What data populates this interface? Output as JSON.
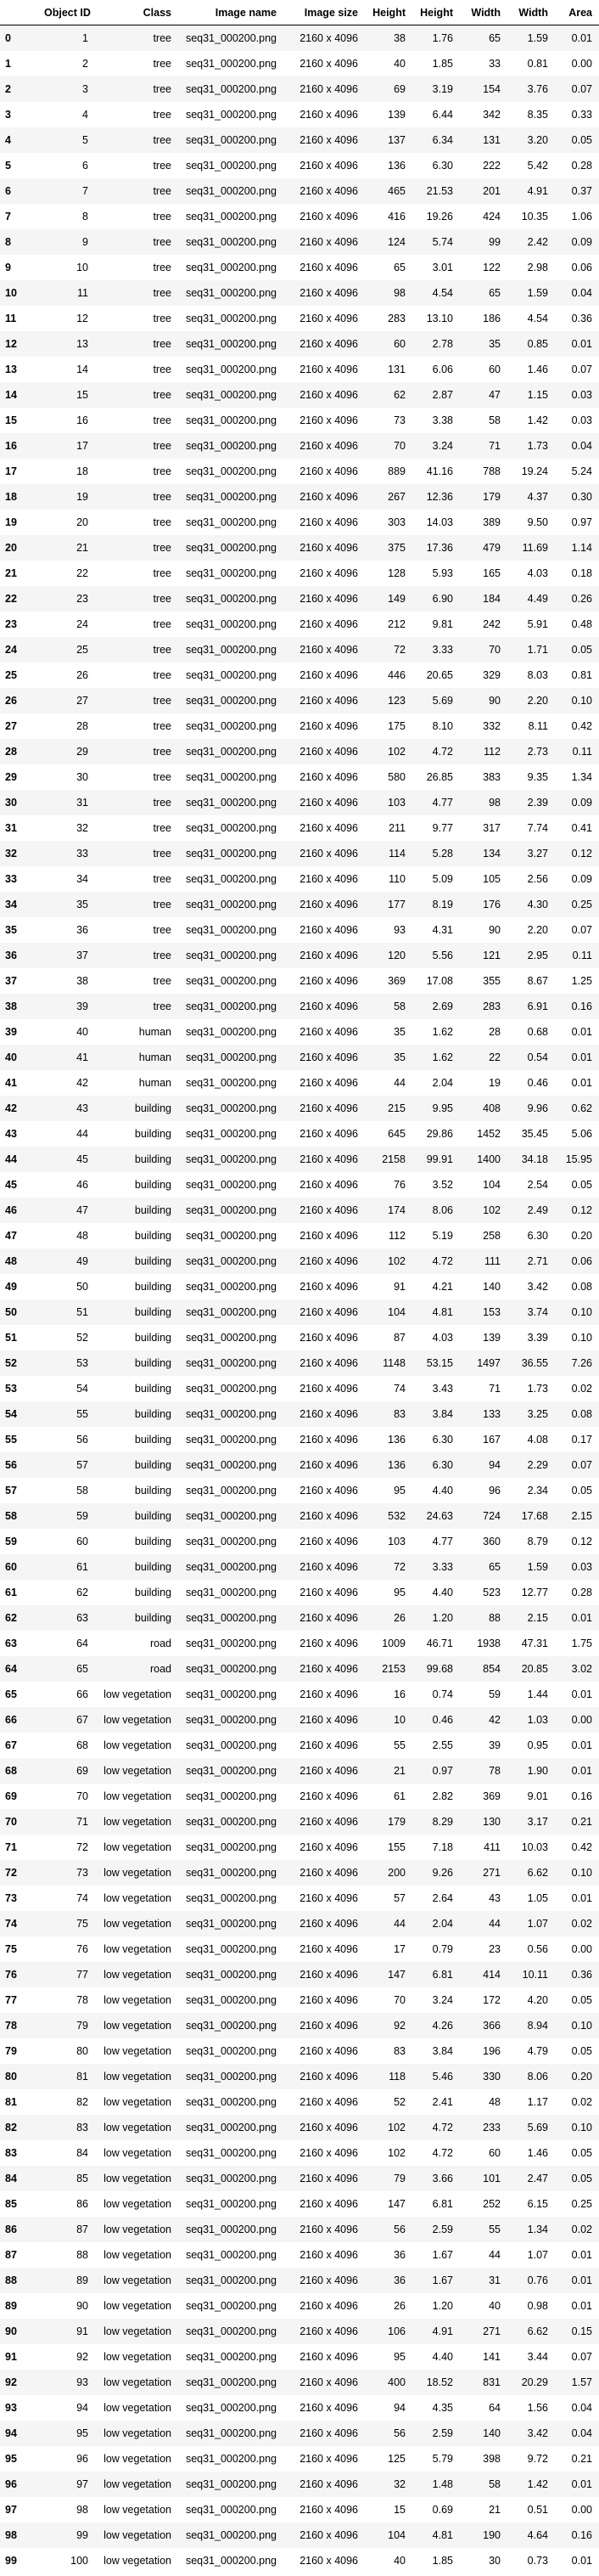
{
  "table": {
    "columns": [
      "",
      "Object ID",
      "Class",
      "Image name",
      "Image size",
      "Height",
      "Height",
      "Width",
      "Width",
      "Area"
    ],
    "rows": [
      [
        "0",
        "1",
        "tree",
        "seq31_000200.png",
        "2160 x 4096",
        "38",
        "1.76",
        "65",
        "1.59",
        "0.01"
      ],
      [
        "1",
        "2",
        "tree",
        "seq31_000200.png",
        "2160 x 4096",
        "40",
        "1.85",
        "33",
        "0.81",
        "0.00"
      ],
      [
        "2",
        "3",
        "tree",
        "seq31_000200.png",
        "2160 x 4096",
        "69",
        "3.19",
        "154",
        "3.76",
        "0.07"
      ],
      [
        "3",
        "4",
        "tree",
        "seq31_000200.png",
        "2160 x 4096",
        "139",
        "6.44",
        "342",
        "8.35",
        "0.33"
      ],
      [
        "4",
        "5",
        "tree",
        "seq31_000200.png",
        "2160 x 4096",
        "137",
        "6.34",
        "131",
        "3.20",
        "0.05"
      ],
      [
        "5",
        "6",
        "tree",
        "seq31_000200.png",
        "2160 x 4096",
        "136",
        "6.30",
        "222",
        "5.42",
        "0.28"
      ],
      [
        "6",
        "7",
        "tree",
        "seq31_000200.png",
        "2160 x 4096",
        "465",
        "21.53",
        "201",
        "4.91",
        "0.37"
      ],
      [
        "7",
        "8",
        "tree",
        "seq31_000200.png",
        "2160 x 4096",
        "416",
        "19.26",
        "424",
        "10.35",
        "1.06"
      ],
      [
        "8",
        "9",
        "tree",
        "seq31_000200.png",
        "2160 x 4096",
        "124",
        "5.74",
        "99",
        "2.42",
        "0.09"
      ],
      [
        "9",
        "10",
        "tree",
        "seq31_000200.png",
        "2160 x 4096",
        "65",
        "3.01",
        "122",
        "2.98",
        "0.06"
      ],
      [
        "10",
        "11",
        "tree",
        "seq31_000200.png",
        "2160 x 4096",
        "98",
        "4.54",
        "65",
        "1.59",
        "0.04"
      ],
      [
        "11",
        "12",
        "tree",
        "seq31_000200.png",
        "2160 x 4096",
        "283",
        "13.10",
        "186",
        "4.54",
        "0.36"
      ],
      [
        "12",
        "13",
        "tree",
        "seq31_000200.png",
        "2160 x 4096",
        "60",
        "2.78",
        "35",
        "0.85",
        "0.01"
      ],
      [
        "13",
        "14",
        "tree",
        "seq31_000200.png",
        "2160 x 4096",
        "131",
        "6.06",
        "60",
        "1.46",
        "0.07"
      ],
      [
        "14",
        "15",
        "tree",
        "seq31_000200.png",
        "2160 x 4096",
        "62",
        "2.87",
        "47",
        "1.15",
        "0.03"
      ],
      [
        "15",
        "16",
        "tree",
        "seq31_000200.png",
        "2160 x 4096",
        "73",
        "3.38",
        "58",
        "1.42",
        "0.03"
      ],
      [
        "16",
        "17",
        "tree",
        "seq31_000200.png",
        "2160 x 4096",
        "70",
        "3.24",
        "71",
        "1.73",
        "0.04"
      ],
      [
        "17",
        "18",
        "tree",
        "seq31_000200.png",
        "2160 x 4096",
        "889",
        "41.16",
        "788",
        "19.24",
        "5.24"
      ],
      [
        "18",
        "19",
        "tree",
        "seq31_000200.png",
        "2160 x 4096",
        "267",
        "12.36",
        "179",
        "4.37",
        "0.30"
      ],
      [
        "19",
        "20",
        "tree",
        "seq31_000200.png",
        "2160 x 4096",
        "303",
        "14.03",
        "389",
        "9.50",
        "0.97"
      ],
      [
        "20",
        "21",
        "tree",
        "seq31_000200.png",
        "2160 x 4096",
        "375",
        "17.36",
        "479",
        "11.69",
        "1.14"
      ],
      [
        "21",
        "22",
        "tree",
        "seq31_000200.png",
        "2160 x 4096",
        "128",
        "5.93",
        "165",
        "4.03",
        "0.18"
      ],
      [
        "22",
        "23",
        "tree",
        "seq31_000200.png",
        "2160 x 4096",
        "149",
        "6.90",
        "184",
        "4.49",
        "0.26"
      ],
      [
        "23",
        "24",
        "tree",
        "seq31_000200.png",
        "2160 x 4096",
        "212",
        "9.81",
        "242",
        "5.91",
        "0.48"
      ],
      [
        "24",
        "25",
        "tree",
        "seq31_000200.png",
        "2160 x 4096",
        "72",
        "3.33",
        "70",
        "1.71",
        "0.05"
      ],
      [
        "25",
        "26",
        "tree",
        "seq31_000200.png",
        "2160 x 4096",
        "446",
        "20.65",
        "329",
        "8.03",
        "0.81"
      ],
      [
        "26",
        "27",
        "tree",
        "seq31_000200.png",
        "2160 x 4096",
        "123",
        "5.69",
        "90",
        "2.20",
        "0.10"
      ],
      [
        "27",
        "28",
        "tree",
        "seq31_000200.png",
        "2160 x 4096",
        "175",
        "8.10",
        "332",
        "8.11",
        "0.42"
      ],
      [
        "28",
        "29",
        "tree",
        "seq31_000200.png",
        "2160 x 4096",
        "102",
        "4.72",
        "112",
        "2.73",
        "0.11"
      ],
      [
        "29",
        "30",
        "tree",
        "seq31_000200.png",
        "2160 x 4096",
        "580",
        "26.85",
        "383",
        "9.35",
        "1.34"
      ],
      [
        "30",
        "31",
        "tree",
        "seq31_000200.png",
        "2160 x 4096",
        "103",
        "4.77",
        "98",
        "2.39",
        "0.09"
      ],
      [
        "31",
        "32",
        "tree",
        "seq31_000200.png",
        "2160 x 4096",
        "211",
        "9.77",
        "317",
        "7.74",
        "0.41"
      ],
      [
        "32",
        "33",
        "tree",
        "seq31_000200.png",
        "2160 x 4096",
        "114",
        "5.28",
        "134",
        "3.27",
        "0.12"
      ],
      [
        "33",
        "34",
        "tree",
        "seq31_000200.png",
        "2160 x 4096",
        "110",
        "5.09",
        "105",
        "2.56",
        "0.09"
      ],
      [
        "34",
        "35",
        "tree",
        "seq31_000200.png",
        "2160 x 4096",
        "177",
        "8.19",
        "176",
        "4.30",
        "0.25"
      ],
      [
        "35",
        "36",
        "tree",
        "seq31_000200.png",
        "2160 x 4096",
        "93",
        "4.31",
        "90",
        "2.20",
        "0.07"
      ],
      [
        "36",
        "37",
        "tree",
        "seq31_000200.png",
        "2160 x 4096",
        "120",
        "5.56",
        "121",
        "2.95",
        "0.11"
      ],
      [
        "37",
        "38",
        "tree",
        "seq31_000200.png",
        "2160 x 4096",
        "369",
        "17.08",
        "355",
        "8.67",
        "1.25"
      ],
      [
        "38",
        "39",
        "tree",
        "seq31_000200.png",
        "2160 x 4096",
        "58",
        "2.69",
        "283",
        "6.91",
        "0.16"
      ],
      [
        "39",
        "40",
        "human",
        "seq31_000200.png",
        "2160 x 4096",
        "35",
        "1.62",
        "28",
        "0.68",
        "0.01"
      ],
      [
        "40",
        "41",
        "human",
        "seq31_000200.png",
        "2160 x 4096",
        "35",
        "1.62",
        "22",
        "0.54",
        "0.01"
      ],
      [
        "41",
        "42",
        "human",
        "seq31_000200.png",
        "2160 x 4096",
        "44",
        "2.04",
        "19",
        "0.46",
        "0.01"
      ],
      [
        "42",
        "43",
        "building",
        "seq31_000200.png",
        "2160 x 4096",
        "215",
        "9.95",
        "408",
        "9.96",
        "0.62"
      ],
      [
        "43",
        "44",
        "building",
        "seq31_000200.png",
        "2160 x 4096",
        "645",
        "29.86",
        "1452",
        "35.45",
        "5.06"
      ],
      [
        "44",
        "45",
        "building",
        "seq31_000200.png",
        "2160 x 4096",
        "2158",
        "99.91",
        "1400",
        "34.18",
        "15.95"
      ],
      [
        "45",
        "46",
        "building",
        "seq31_000200.png",
        "2160 x 4096",
        "76",
        "3.52",
        "104",
        "2.54",
        "0.05"
      ],
      [
        "46",
        "47",
        "building",
        "seq31_000200.png",
        "2160 x 4096",
        "174",
        "8.06",
        "102",
        "2.49",
        "0.12"
      ],
      [
        "47",
        "48",
        "building",
        "seq31_000200.png",
        "2160 x 4096",
        "112",
        "5.19",
        "258",
        "6.30",
        "0.20"
      ],
      [
        "48",
        "49",
        "building",
        "seq31_000200.png",
        "2160 x 4096",
        "102",
        "4.72",
        "111",
        "2.71",
        "0.06"
      ],
      [
        "49",
        "50",
        "building",
        "seq31_000200.png",
        "2160 x 4096",
        "91",
        "4.21",
        "140",
        "3.42",
        "0.08"
      ],
      [
        "50",
        "51",
        "building",
        "seq31_000200.png",
        "2160 x 4096",
        "104",
        "4.81",
        "153",
        "3.74",
        "0.10"
      ],
      [
        "51",
        "52",
        "building",
        "seq31_000200.png",
        "2160 x 4096",
        "87",
        "4.03",
        "139",
        "3.39",
        "0.10"
      ],
      [
        "52",
        "53",
        "building",
        "seq31_000200.png",
        "2160 x 4096",
        "1148",
        "53.15",
        "1497",
        "36.55",
        "7.26"
      ],
      [
        "53",
        "54",
        "building",
        "seq31_000200.png",
        "2160 x 4096",
        "74",
        "3.43",
        "71",
        "1.73",
        "0.02"
      ],
      [
        "54",
        "55",
        "building",
        "seq31_000200.png",
        "2160 x 4096",
        "83",
        "3.84",
        "133",
        "3.25",
        "0.08"
      ],
      [
        "55",
        "56",
        "building",
        "seq31_000200.png",
        "2160 x 4096",
        "136",
        "6.30",
        "167",
        "4.08",
        "0.17"
      ],
      [
        "56",
        "57",
        "building",
        "seq31_000200.png",
        "2160 x 4096",
        "136",
        "6.30",
        "94",
        "2.29",
        "0.07"
      ],
      [
        "57",
        "58",
        "building",
        "seq31_000200.png",
        "2160 x 4096",
        "95",
        "4.40",
        "96",
        "2.34",
        "0.05"
      ],
      [
        "58",
        "59",
        "building",
        "seq31_000200.png",
        "2160 x 4096",
        "532",
        "24.63",
        "724",
        "17.68",
        "2.15"
      ],
      [
        "59",
        "60",
        "building",
        "seq31_000200.png",
        "2160 x 4096",
        "103",
        "4.77",
        "360",
        "8.79",
        "0.12"
      ],
      [
        "60",
        "61",
        "building",
        "seq31_000200.png",
        "2160 x 4096",
        "72",
        "3.33",
        "65",
        "1.59",
        "0.03"
      ],
      [
        "61",
        "62",
        "building",
        "seq31_000200.png",
        "2160 x 4096",
        "95",
        "4.40",
        "523",
        "12.77",
        "0.28"
      ],
      [
        "62",
        "63",
        "building",
        "seq31_000200.png",
        "2160 x 4096",
        "26",
        "1.20",
        "88",
        "2.15",
        "0.01"
      ],
      [
        "63",
        "64",
        "road",
        "seq31_000200.png",
        "2160 x 4096",
        "1009",
        "46.71",
        "1938",
        "47.31",
        "1.75"
      ],
      [
        "64",
        "65",
        "road",
        "seq31_000200.png",
        "2160 x 4096",
        "2153",
        "99.68",
        "854",
        "20.85",
        "3.02"
      ],
      [
        "65",
        "66",
        "low vegetation",
        "seq31_000200.png",
        "2160 x 4096",
        "16",
        "0.74",
        "59",
        "1.44",
        "0.01"
      ],
      [
        "66",
        "67",
        "low vegetation",
        "seq31_000200.png",
        "2160 x 4096",
        "10",
        "0.46",
        "42",
        "1.03",
        "0.00"
      ],
      [
        "67",
        "68",
        "low vegetation",
        "seq31_000200.png",
        "2160 x 4096",
        "55",
        "2.55",
        "39",
        "0.95",
        "0.01"
      ],
      [
        "68",
        "69",
        "low vegetation",
        "seq31_000200.png",
        "2160 x 4096",
        "21",
        "0.97",
        "78",
        "1.90",
        "0.01"
      ],
      [
        "69",
        "70",
        "low vegetation",
        "seq31_000200.png",
        "2160 x 4096",
        "61",
        "2.82",
        "369",
        "9.01",
        "0.16"
      ],
      [
        "70",
        "71",
        "low vegetation",
        "seq31_000200.png",
        "2160 x 4096",
        "179",
        "8.29",
        "130",
        "3.17",
        "0.21"
      ],
      [
        "71",
        "72",
        "low vegetation",
        "seq31_000200.png",
        "2160 x 4096",
        "155",
        "7.18",
        "411",
        "10.03",
        "0.42"
      ],
      [
        "72",
        "73",
        "low vegetation",
        "seq31_000200.png",
        "2160 x 4096",
        "200",
        "9.26",
        "271",
        "6.62",
        "0.10"
      ],
      [
        "73",
        "74",
        "low vegetation",
        "seq31_000200.png",
        "2160 x 4096",
        "57",
        "2.64",
        "43",
        "1.05",
        "0.01"
      ],
      [
        "74",
        "75",
        "low vegetation",
        "seq31_000200.png",
        "2160 x 4096",
        "44",
        "2.04",
        "44",
        "1.07",
        "0.02"
      ],
      [
        "75",
        "76",
        "low vegetation",
        "seq31_000200.png",
        "2160 x 4096",
        "17",
        "0.79",
        "23",
        "0.56",
        "0.00"
      ],
      [
        "76",
        "77",
        "low vegetation",
        "seq31_000200.png",
        "2160 x 4096",
        "147",
        "6.81",
        "414",
        "10.11",
        "0.36"
      ],
      [
        "77",
        "78",
        "low vegetation",
        "seq31_000200.png",
        "2160 x 4096",
        "70",
        "3.24",
        "172",
        "4.20",
        "0.05"
      ],
      [
        "78",
        "79",
        "low vegetation",
        "seq31_000200.png",
        "2160 x 4096",
        "92",
        "4.26",
        "366",
        "8.94",
        "0.10"
      ],
      [
        "79",
        "80",
        "low vegetation",
        "seq31_000200.png",
        "2160 x 4096",
        "83",
        "3.84",
        "196",
        "4.79",
        "0.05"
      ],
      [
        "80",
        "81",
        "low vegetation",
        "seq31_000200.png",
        "2160 x 4096",
        "118",
        "5.46",
        "330",
        "8.06",
        "0.20"
      ],
      [
        "81",
        "82",
        "low vegetation",
        "seq31_000200.png",
        "2160 x 4096",
        "52",
        "2.41",
        "48",
        "1.17",
        "0.02"
      ],
      [
        "82",
        "83",
        "low vegetation",
        "seq31_000200.png",
        "2160 x 4096",
        "102",
        "4.72",
        "233",
        "5.69",
        "0.10"
      ],
      [
        "83",
        "84",
        "low vegetation",
        "seq31_000200.png",
        "2160 x 4096",
        "102",
        "4.72",
        "60",
        "1.46",
        "0.05"
      ],
      [
        "84",
        "85",
        "low vegetation",
        "seq31_000200.png",
        "2160 x 4096",
        "79",
        "3.66",
        "101",
        "2.47",
        "0.05"
      ],
      [
        "85",
        "86",
        "low vegetation",
        "seq31_000200.png",
        "2160 x 4096",
        "147",
        "6.81",
        "252",
        "6.15",
        "0.25"
      ],
      [
        "86",
        "87",
        "low vegetation",
        "seq31_000200.png",
        "2160 x 4096",
        "56",
        "2.59",
        "55",
        "1.34",
        "0.02"
      ],
      [
        "87",
        "88",
        "low vegetation",
        "seq31_000200.png",
        "2160 x 4096",
        "36",
        "1.67",
        "44",
        "1.07",
        "0.01"
      ],
      [
        "88",
        "89",
        "low vegetation",
        "seq31_000200.png",
        "2160 x 4096",
        "36",
        "1.67",
        "31",
        "0.76",
        "0.01"
      ],
      [
        "89",
        "90",
        "low vegetation",
        "seq31_000200.png",
        "2160 x 4096",
        "26",
        "1.20",
        "40",
        "0.98",
        "0.01"
      ],
      [
        "90",
        "91",
        "low vegetation",
        "seq31_000200.png",
        "2160 x 4096",
        "106",
        "4.91",
        "271",
        "6.62",
        "0.15"
      ],
      [
        "91",
        "92",
        "low vegetation",
        "seq31_000200.png",
        "2160 x 4096",
        "95",
        "4.40",
        "141",
        "3.44",
        "0.07"
      ],
      [
        "92",
        "93",
        "low vegetation",
        "seq31_000200.png",
        "2160 x 4096",
        "400",
        "18.52",
        "831",
        "20.29",
        "1.57"
      ],
      [
        "93",
        "94",
        "low vegetation",
        "seq31_000200.png",
        "2160 x 4096",
        "94",
        "4.35",
        "64",
        "1.56",
        "0.04"
      ],
      [
        "94",
        "95",
        "low vegetation",
        "seq31_000200.png",
        "2160 x 4096",
        "56",
        "2.59",
        "140",
        "3.42",
        "0.04"
      ],
      [
        "95",
        "96",
        "low vegetation",
        "seq31_000200.png",
        "2160 x 4096",
        "125",
        "5.79",
        "398",
        "9.72",
        "0.21"
      ],
      [
        "96",
        "97",
        "low vegetation",
        "seq31_000200.png",
        "2160 x 4096",
        "32",
        "1.48",
        "58",
        "1.42",
        "0.01"
      ],
      [
        "97",
        "98",
        "low vegetation",
        "seq31_000200.png",
        "2160 x 4096",
        "15",
        "0.69",
        "21",
        "0.51",
        "0.00"
      ],
      [
        "98",
        "99",
        "low vegetation",
        "seq31_000200.png",
        "2160 x 4096",
        "104",
        "4.81",
        "190",
        "4.64",
        "0.16"
      ],
      [
        "99",
        "100",
        "low vegetation",
        "seq31_000200.png",
        "2160 x 4096",
        "40",
        "1.85",
        "30",
        "0.73",
        "0.01"
      ]
    ]
  }
}
